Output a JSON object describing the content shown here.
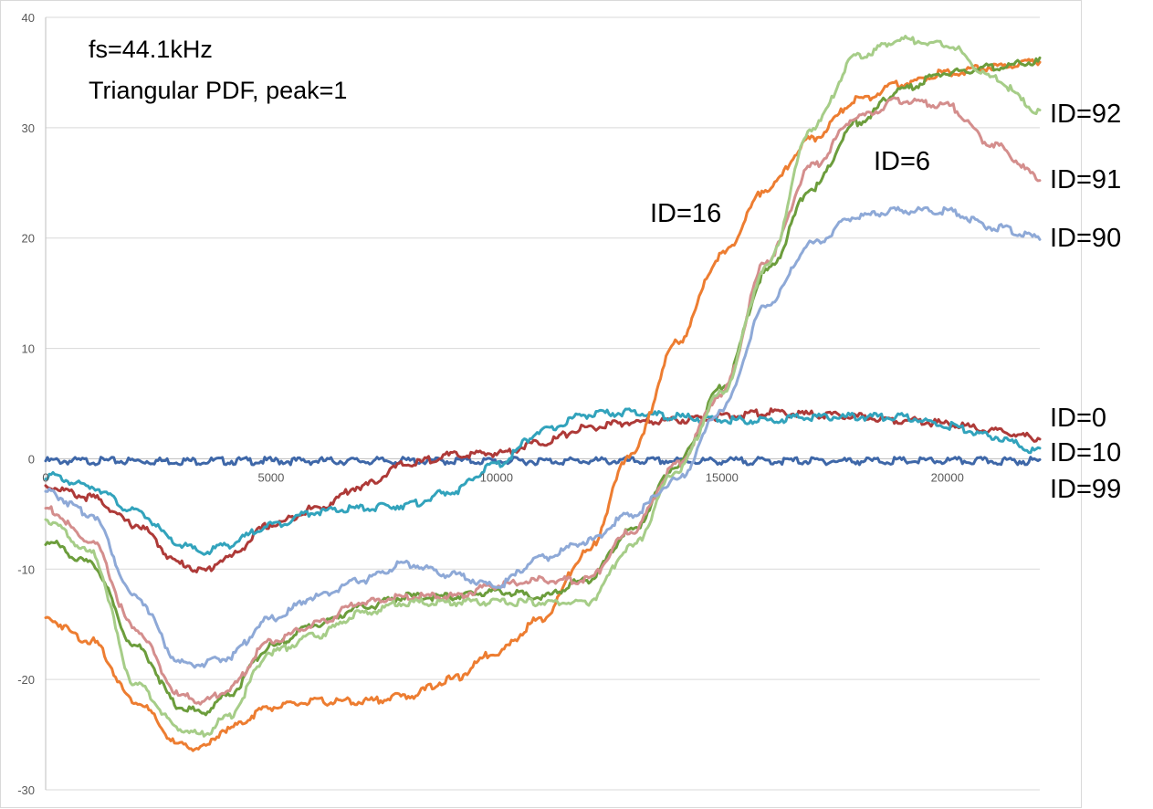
{
  "chart_data": {
    "type": "line",
    "title": "",
    "xlabel": "",
    "ylabel": "",
    "xlim": [
      0,
      22050
    ],
    "ylim": [
      -30,
      40
    ],
    "grid": true,
    "x_ticks": [
      "0",
      "5000",
      "10000",
      "15000",
      "20000"
    ],
    "y_ticks": [
      "40",
      "30",
      "20",
      "10",
      "0",
      "-10",
      "-20",
      "-30"
    ],
    "annotations": [
      "fs=44.1kHz",
      "Triangular PDF, peak=1"
    ],
    "x": [
      0,
      1000,
      2000,
      3000,
      3500,
      4000,
      5000,
      6000,
      7000,
      8000,
      9000,
      10000,
      11000,
      12000,
      13000,
      14000,
      15000,
      16000,
      17000,
      18000,
      19000,
      20000,
      21000,
      22050
    ],
    "series": [
      {
        "name": "ID=0",
        "color": "#3E67A8",
        "values": [
          -0.2,
          -0.2,
          -0.2,
          -0.2,
          -0.2,
          -0.2,
          -0.2,
          -0.2,
          -0.2,
          -0.2,
          -0.2,
          -0.2,
          -0.2,
          -0.2,
          -0.2,
          -0.2,
          -0.2,
          -0.2,
          -0.2,
          -0.2,
          -0.2,
          -0.2,
          -0.2,
          -0.2
        ]
      },
      {
        "name": "ID=10",
        "color": "#AE3A38",
        "values": [
          -2.5,
          -3.5,
          -6.0,
          -9.5,
          -10.2,
          -9.0,
          -6.0,
          -4.5,
          -2.5,
          -0.5,
          0.3,
          0.5,
          1.5,
          2.8,
          3.3,
          3.5,
          3.8,
          4.2,
          4.0,
          3.8,
          3.5,
          3.2,
          2.5,
          1.9
        ]
      },
      {
        "name": "ID=99",
        "color": "#32A3BC",
        "values": [
          -1.5,
          -2.5,
          -4.8,
          -7.8,
          -8.5,
          -7.8,
          -6.0,
          -4.8,
          -4.5,
          -4.2,
          -3.0,
          -0.5,
          2.5,
          4.0,
          4.2,
          3.8,
          3.5,
          3.5,
          3.8,
          3.8,
          3.8,
          3.0,
          2.0,
          0.7
        ]
      },
      {
        "name": "ID=16",
        "color": "#ED7D31",
        "values": [
          -14.5,
          -16.5,
          -22.0,
          -26.0,
          -26.2,
          -24.5,
          -22.5,
          -22.0,
          -22.0,
          -21.5,
          -20.0,
          -17.5,
          -14.5,
          -8.5,
          0.5,
          10.5,
          18.5,
          24.5,
          29.0,
          32.5,
          34.0,
          35.0,
          35.5,
          36.0
        ]
      },
      {
        "name": "ID=6",
        "color": "#6C9D3C",
        "values": [
          -7.5,
          -9.5,
          -17.0,
          -22.5,
          -23.0,
          -21.5,
          -17.0,
          -15.0,
          -13.5,
          -12.5,
          -12.5,
          -12.0,
          -12.5,
          -11.0,
          -6.5,
          -0.5,
          6.5,
          17.0,
          24.5,
          30.5,
          33.5,
          35.0,
          35.5,
          36.0
        ]
      },
      {
        "name": "ID=91",
        "color": "#D48E8D",
        "values": [
          -4.5,
          -7.5,
          -15.5,
          -21.5,
          -22.0,
          -21.0,
          -16.5,
          -15.0,
          -13.0,
          -12.5,
          -12.5,
          -11.5,
          -11.0,
          -11.0,
          -6.5,
          -0.5,
          6.0,
          18.0,
          26.5,
          31.0,
          32.5,
          32.0,
          28.5,
          25.5
        ]
      },
      {
        "name": "ID=92",
        "color": "#A6CD88",
        "values": [
          -5.5,
          -8.5,
          -20.5,
          -24.5,
          -25.0,
          -23.5,
          -17.5,
          -16.0,
          -14.0,
          -13.0,
          -13.0,
          -13.0,
          -13.0,
          -13.0,
          -8.0,
          -1.0,
          6.0,
          17.5,
          30.0,
          36.5,
          38.0,
          37.5,
          34.5,
          31.5
        ]
      },
      {
        "name": "ID=90",
        "color": "#8EA9D7",
        "values": [
          -3.0,
          -5.0,
          -12.5,
          -18.5,
          -18.6,
          -18.0,
          -14.5,
          -12.5,
          -11.0,
          -9.5,
          -10.5,
          -11.5,
          -9.0,
          -7.5,
          -5.0,
          -2.0,
          4.5,
          14.0,
          19.5,
          22.0,
          22.5,
          22.5,
          21.0,
          20.0
        ]
      }
    ],
    "series_labels": [
      {
        "series": "ID=92",
        "text": "ID=92"
      },
      {
        "series": "ID=91",
        "text": "ID=91"
      },
      {
        "series": "ID=90",
        "text": "ID=90"
      },
      {
        "series": "ID=0",
        "text": "ID=0"
      },
      {
        "series": "ID=10",
        "text": "ID=10"
      },
      {
        "series": "ID=99",
        "text": "ID=99"
      },
      {
        "series": "ID=16",
        "text": "ID=16"
      },
      {
        "series": "ID=6",
        "text": "ID=6"
      }
    ]
  }
}
